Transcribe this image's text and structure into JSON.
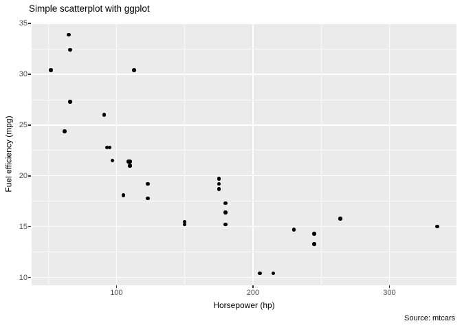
{
  "chart": {
    "title": "Simple scatterplot with ggplot",
    "xlabel": "Horsepower (hp)",
    "ylabel": "Fuel efficiency (mpg)",
    "caption": "Source: mtcars"
  },
  "chart_data": {
    "type": "scatter",
    "title": "Simple scatterplot with ggplot",
    "xlabel": "Horsepower (hp)",
    "ylabel": "Fuel efficiency (mpg)",
    "caption": "Source: mtcars",
    "xlim": [
      37.85,
      349.15
    ],
    "ylim": [
      9.225,
      35.075
    ],
    "x_major_ticks": [
      100,
      200,
      300
    ],
    "x_minor_ticks": [
      50,
      150,
      250
    ],
    "y_major_ticks": [
      10,
      15,
      20,
      25,
      30,
      35
    ],
    "y_minor_ticks": [
      12.5,
      17.5,
      22.5,
      27.5,
      32.5
    ],
    "grid": true,
    "legend": "none",
    "x_series_name": "Horsepower (hp)",
    "y_series_name": "Fuel efficiency (mpg)",
    "points": [
      [
        110,
        21.0
      ],
      [
        110,
        21.0
      ],
      [
        93,
        22.8
      ],
      [
        110,
        21.4
      ],
      [
        175,
        18.7
      ],
      [
        105,
        18.1
      ],
      [
        245,
        14.3
      ],
      [
        62,
        24.4
      ],
      [
        95,
        22.8
      ],
      [
        123,
        19.2
      ],
      [
        123,
        17.8
      ],
      [
        180,
        16.4
      ],
      [
        180,
        17.3
      ],
      [
        180,
        15.2
      ],
      [
        205,
        10.4
      ],
      [
        215,
        10.4
      ],
      [
        230,
        14.7
      ],
      [
        66,
        32.4
      ],
      [
        52,
        30.4
      ],
      [
        65,
        33.9
      ],
      [
        97,
        21.5
      ],
      [
        150,
        15.5
      ],
      [
        150,
        15.2
      ],
      [
        245,
        13.3
      ],
      [
        175,
        19.2
      ],
      [
        66,
        27.3
      ],
      [
        91,
        26.0
      ],
      [
        113,
        30.4
      ],
      [
        264,
        15.8
      ],
      [
        175,
        19.7
      ],
      [
        335,
        15.0
      ],
      [
        109,
        21.4
      ]
    ],
    "colors": {
      "background": "#FFFFFF",
      "panel": "#EBEBEB",
      "grid": "#FFFFFF",
      "point": "#000000",
      "tick_label": "#4D4D4D",
      "tick_mark": "#333333",
      "text": "#000000"
    }
  }
}
